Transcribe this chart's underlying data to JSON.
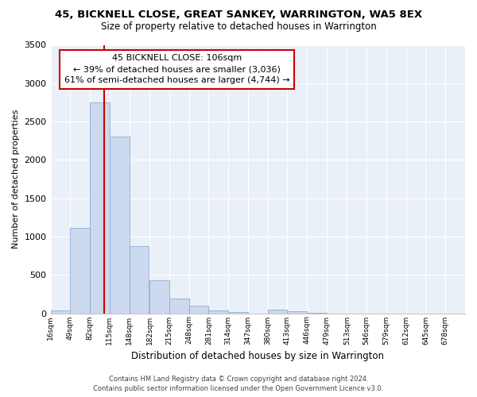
{
  "title": "45, BICKNELL CLOSE, GREAT SANKEY, WARRINGTON, WA5 8EX",
  "subtitle": "Size of property relative to detached houses in Warrington",
  "xlabel": "Distribution of detached houses by size in Warrington",
  "ylabel": "Number of detached properties",
  "bar_color": "#ccd9ee",
  "bar_edge_color": "#8aadd4",
  "bin_labels": [
    "16sqm",
    "49sqm",
    "82sqm",
    "115sqm",
    "148sqm",
    "182sqm",
    "215sqm",
    "248sqm",
    "281sqm",
    "314sqm",
    "347sqm",
    "380sqm",
    "413sqm",
    "446sqm",
    "479sqm",
    "513sqm",
    "546sqm",
    "579sqm",
    "612sqm",
    "645sqm",
    "678sqm"
  ],
  "bar_heights": [
    40,
    1110,
    2750,
    2300,
    880,
    430,
    190,
    95,
    35,
    20,
    0,
    50,
    30,
    10,
    0,
    0,
    0,
    0,
    0,
    0,
    0
  ],
  "ylim": [
    0,
    3500
  ],
  "yticks": [
    0,
    500,
    1000,
    1500,
    2000,
    2500,
    3000,
    3500
  ],
  "bin_starts": [
    16,
    49,
    82,
    115,
    148,
    182,
    215,
    248,
    281,
    314,
    347,
    380,
    413,
    446,
    479,
    513,
    546,
    579,
    612,
    645,
    678
  ],
  "bin_width": 33,
  "property_line_x": 106,
  "property_line_label": "45 BICKNELL CLOSE: 106sqm",
  "annotation_line1": "← 39% of detached houses are smaller (3,036)",
  "annotation_line2": "61% of semi-detached houses are larger (4,744) →",
  "annotation_box_color": "#ffffff",
  "annotation_box_edge_color": "#cc0000",
  "vline_color": "#cc0000",
  "footer_line1": "Contains HM Land Registry data © Crown copyright and database right 2024.",
  "footer_line2": "Contains public sector information licensed under the Open Government Licence v3.0.",
  "background_color": "#ffffff",
  "plot_bg_color": "#eaf0f8",
  "grid_color": "#ffffff"
}
